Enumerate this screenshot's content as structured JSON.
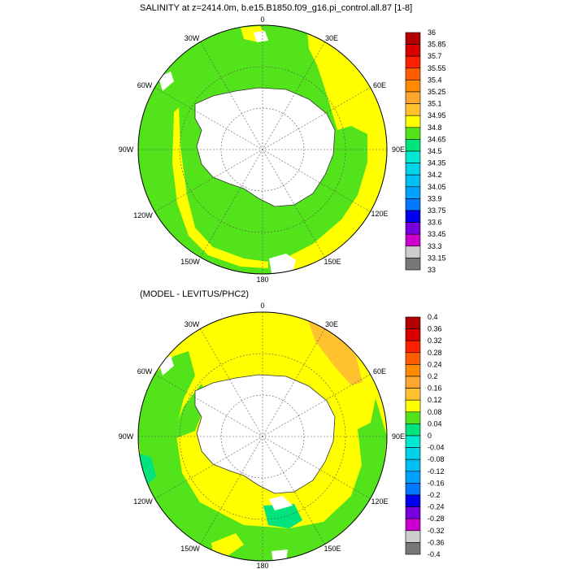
{
  "top_panel": {
    "title": "SALINITY at z=2414.0m, b.e15.B1850.f09_g16.pi_control.all.87 [1-8]",
    "longitude_labels": [
      "0",
      "30E",
      "60E",
      "90E",
      "120E",
      "150E",
      "180",
      "150W",
      "120W",
      "90W",
      "60W",
      "30W"
    ],
    "colorbar": {
      "labels": [
        "36",
        "35.85",
        "35.7",
        "35.55",
        "35.4",
        "35.25",
        "35.1",
        "34.95",
        "34.8",
        "34.65",
        "34.5",
        "34.35",
        "34.2",
        "34.05",
        "33.9",
        "33.75",
        "33.6",
        "33.45",
        "33.3",
        "33.15",
        "33"
      ],
      "colors": [
        "#b30000",
        "#d80000",
        "#ff2200",
        "#ff5e00",
        "#ff8c00",
        "#ffa630",
        "#ffc22e",
        "#ffff00",
        "#52e31a",
        "#00e37d",
        "#00e8d2",
        "#00d2ea",
        "#00bef2",
        "#00a0ff",
        "#0078ff",
        "#0000ee",
        "#7700dd",
        "#cc00cc",
        "#cccccc",
        "#777777"
      ]
    }
  },
  "bottom_panel": {
    "title": "(MODEL - LEVITUS/PHC2)",
    "longitude_labels": [
      "0",
      "30E",
      "60E",
      "90E",
      "120E",
      "150E",
      "180",
      "150W",
      "120W",
      "90W",
      "60W",
      "30W"
    ],
    "colorbar": {
      "labels": [
        "0.4",
        "0.36",
        "0.32",
        "0.28",
        "0.24",
        "0.2",
        "0.16",
        "0.12",
        "0.08",
        "0.04",
        "0",
        "-0.04",
        "-0.08",
        "-0.12",
        "-0.16",
        "-0.2",
        "-0.24",
        "-0.28",
        "-0.32",
        "-0.36",
        "-0.4"
      ],
      "colors": [
        "#b30000",
        "#d80000",
        "#ff2200",
        "#ff5e00",
        "#ff8c00",
        "#ffa630",
        "#ffc22e",
        "#ffff00",
        "#52e31a",
        "#00e37d",
        "#00e8d2",
        "#00d2ea",
        "#00bef2",
        "#00a0ff",
        "#0078ff",
        "#0000ee",
        "#7700dd",
        "#cc00cc",
        "#cccccc",
        "#777777"
      ]
    }
  }
}
